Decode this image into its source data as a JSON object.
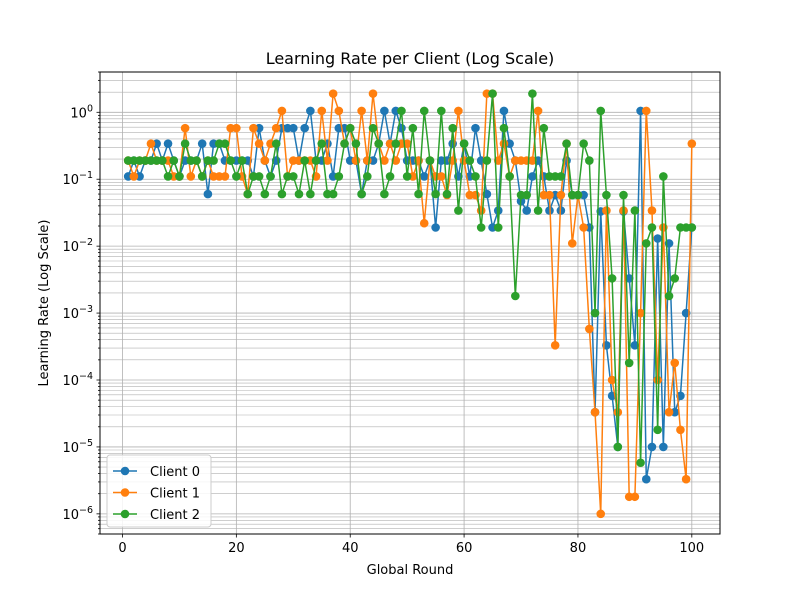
{
  "chart_data": {
    "type": "line",
    "title": "Learning Rate per Client (Log Scale)",
    "xlabel": "Global Round",
    "ylabel": "Learning Rate (Log Scale)",
    "xlim": [
      -3.95,
      104.95
    ],
    "ylim": [
      5e-07,
      4
    ],
    "yscale": "log",
    "grid": "on (major and minor)",
    "legend_position": "lower-left",
    "x_ticks": [
      0,
      20,
      40,
      60,
      80,
      100
    ],
    "x_tick_labels": [
      "0",
      "20",
      "40",
      "60",
      "80",
      "100"
    ],
    "y_ticks": [
      1e-06,
      1e-05,
      0.0001,
      0.001,
      0.01,
      0.1,
      1
    ],
    "y_tick_labels": [
      {
        "base": "10",
        "exp": "−6"
      },
      {
        "base": "10",
        "exp": "−5"
      },
      {
        "base": "10",
        "exp": "−4"
      },
      {
        "base": "10",
        "exp": "−3"
      },
      {
        "base": "10",
        "exp": "−2"
      },
      {
        "base": "10",
        "exp": "−1"
      },
      {
        "base": "10",
        "exp": "0"
      }
    ],
    "series": [
      {
        "name": "Client 0",
        "color": "#1f77b4",
        "x": [
          1,
          2,
          3,
          4,
          5,
          6,
          7,
          8,
          9,
          10,
          11,
          12,
          13,
          14,
          15,
          16,
          17,
          18,
          19,
          20,
          21,
          22,
          23,
          24,
          25,
          26,
          27,
          28,
          29,
          30,
          31,
          32,
          33,
          34,
          35,
          36,
          37,
          38,
          39,
          40,
          41,
          42,
          43,
          44,
          45,
          46,
          47,
          48,
          49,
          50,
          51,
          52,
          53,
          54,
          55,
          56,
          57,
          58,
          59,
          60,
          61,
          62,
          63,
          64,
          65,
          66,
          67,
          68,
          69,
          70,
          71,
          72,
          73,
          74,
          75,
          76,
          77,
          78,
          79,
          80,
          81,
          82,
          83,
          84,
          85,
          86,
          87,
          88,
          89,
          90,
          91,
          92,
          93,
          94,
          95,
          96,
          97,
          98,
          99,
          100
        ],
        "y": [
          0.11,
          0.19,
          0.11,
          0.19,
          0.19,
          0.34,
          0.19,
          0.34,
          0.19,
          0.11,
          0.19,
          0.19,
          0.19,
          0.34,
          0.06,
          0.34,
          0.34,
          0.19,
          0.19,
          0.19,
          0.19,
          0.19,
          0.11,
          0.58,
          0.19,
          0.11,
          0.19,
          0.58,
          0.58,
          0.58,
          0.19,
          0.58,
          1.05,
          0.19,
          0.19,
          0.34,
          0.11,
          0.58,
          0.58,
          0.19,
          0.19,
          0.06,
          0.19,
          0.19,
          0.34,
          1.05,
          0.34,
          1.05,
          0.58,
          0.19,
          0.19,
          0.19,
          0.11,
          0.19,
          0.019,
          0.19,
          0.19,
          0.34,
          0.11,
          0.34,
          0.11,
          0.58,
          0.19,
          0.06,
          0.019,
          0.034,
          1.05,
          0.34,
          0.19,
          0.047,
          0.034,
          0.11,
          0.19,
          0.11,
          0.034,
          0.058,
          0.034,
          0.19,
          0.058,
          0.058,
          0.058,
          0.019,
          3.3e-05,
          0.033,
          0.00033,
          5.8e-05,
          1e-05,
          0.033,
          0.0033,
          0.00033,
          1.05,
          3.3e-06,
          1e-05,
          0.013,
          1e-05,
          0.011,
          3.3e-05,
          5.8e-05,
          0.001,
          0.019
        ]
      },
      {
        "name": "Client 1",
        "color": "#ff7f0e",
        "x": [
          1,
          2,
          3,
          4,
          5,
          6,
          7,
          8,
          9,
          10,
          11,
          12,
          13,
          14,
          15,
          16,
          17,
          18,
          19,
          20,
          21,
          22,
          23,
          24,
          25,
          26,
          27,
          28,
          29,
          30,
          31,
          32,
          33,
          34,
          35,
          36,
          37,
          38,
          39,
          40,
          41,
          42,
          43,
          44,
          45,
          46,
          47,
          48,
          49,
          50,
          51,
          52,
          53,
          54,
          55,
          56,
          57,
          58,
          59,
          60,
          61,
          62,
          63,
          64,
          65,
          66,
          67,
          68,
          69,
          70,
          71,
          72,
          73,
          74,
          75,
          76,
          77,
          78,
          79,
          80,
          81,
          82,
          83,
          84,
          85,
          86,
          87,
          88,
          89,
          90,
          91,
          92,
          93,
          94,
          95,
          96,
          97,
          98,
          99,
          100
        ],
        "y": [
          0.19,
          0.11,
          0.19,
          0.19,
          0.34,
          0.19,
          0.19,
          0.19,
          0.11,
          0.11,
          0.58,
          0.11,
          0.19,
          0.11,
          0.19,
          0.11,
          0.11,
          0.11,
          0.58,
          0.58,
          0.11,
          0.06,
          0.58,
          0.34,
          0.19,
          0.34,
          0.58,
          1.05,
          0.11,
          0.19,
          0.19,
          0.19,
          0.19,
          0.11,
          1.05,
          0.19,
          1.9,
          1.05,
          0.34,
          0.58,
          0.19,
          1.05,
          0.19,
          1.9,
          0.34,
          0.19,
          0.34,
          0.19,
          0.34,
          0.34,
          0.11,
          0.19,
          0.022,
          0.19,
          0.11,
          0.11,
          0.058,
          0.19,
          1.05,
          0.19,
          0.058,
          0.058,
          0.034,
          1.9,
          1.9,
          0.19,
          0.34,
          0.11,
          0.19,
          0.19,
          0.19,
          0.19,
          1.05,
          0.058,
          0.058,
          0.00033,
          0.058,
          0.34,
          0.011,
          0.058,
          0.019,
          0.00058,
          3.3e-05,
          1e-06,
          0.034,
          0.0001,
          3.3e-05,
          0.034,
          1.8e-06,
          1.8e-06,
          0.001,
          1.05,
          0.034,
          0.0001,
          0.019,
          3.3e-05,
          0.00018,
          1.8e-05,
          3.3e-06,
          0.34
        ]
      },
      {
        "name": "Client 2",
        "color": "#2ca02c",
        "x": [
          1,
          2,
          3,
          4,
          5,
          6,
          7,
          8,
          9,
          10,
          11,
          12,
          13,
          14,
          15,
          16,
          17,
          18,
          19,
          20,
          21,
          22,
          23,
          24,
          25,
          26,
          27,
          28,
          29,
          30,
          31,
          32,
          33,
          34,
          35,
          36,
          37,
          38,
          39,
          40,
          41,
          42,
          43,
          44,
          45,
          46,
          47,
          48,
          49,
          50,
          51,
          52,
          53,
          54,
          55,
          56,
          57,
          58,
          59,
          60,
          61,
          62,
          63,
          64,
          65,
          66,
          67,
          68,
          69,
          70,
          71,
          72,
          73,
          74,
          75,
          76,
          77,
          78,
          79,
          80,
          81,
          82,
          83,
          84,
          85,
          86,
          87,
          88,
          89,
          90,
          91,
          92,
          93,
          94,
          95,
          96,
          97,
          98,
          99,
          100
        ],
        "y": [
          0.19,
          0.19,
          0.19,
          0.19,
          0.19,
          0.19,
          0.19,
          0.11,
          0.19,
          0.11,
          0.34,
          0.19,
          0.19,
          0.11,
          0.19,
          0.19,
          0.34,
          0.34,
          0.19,
          0.11,
          0.19,
          0.06,
          0.11,
          0.11,
          0.06,
          0.11,
          0.34,
          0.06,
          0.11,
          0.11,
          0.06,
          0.19,
          0.06,
          0.19,
          0.34,
          0.06,
          0.06,
          0.11,
          0.34,
          0.58,
          0.34,
          0.06,
          0.11,
          0.58,
          0.34,
          0.06,
          0.11,
          0.34,
          1.05,
          0.11,
          0.58,
          0.06,
          1.05,
          0.19,
          0.06,
          1.05,
          0.06,
          0.58,
          0.034,
          0.34,
          0.19,
          0.11,
          0.019,
          0.19,
          1.9,
          0.019,
          0.58,
          0.11,
          0.0018,
          0.058,
          0.058,
          1.9,
          0.034,
          0.58,
          0.11,
          0.11,
          0.11,
          0.34,
          0.058,
          0.058,
          0.34,
          0.19,
          0.001,
          1.05,
          0.058,
          0.0033,
          1e-05,
          0.058,
          0.00018,
          0.034,
          5.8e-06,
          0.011,
          0.019,
          1.8e-05,
          0.11,
          0.0018,
          0.0033,
          0.019,
          0.019,
          0.019
        ]
      }
    ]
  }
}
